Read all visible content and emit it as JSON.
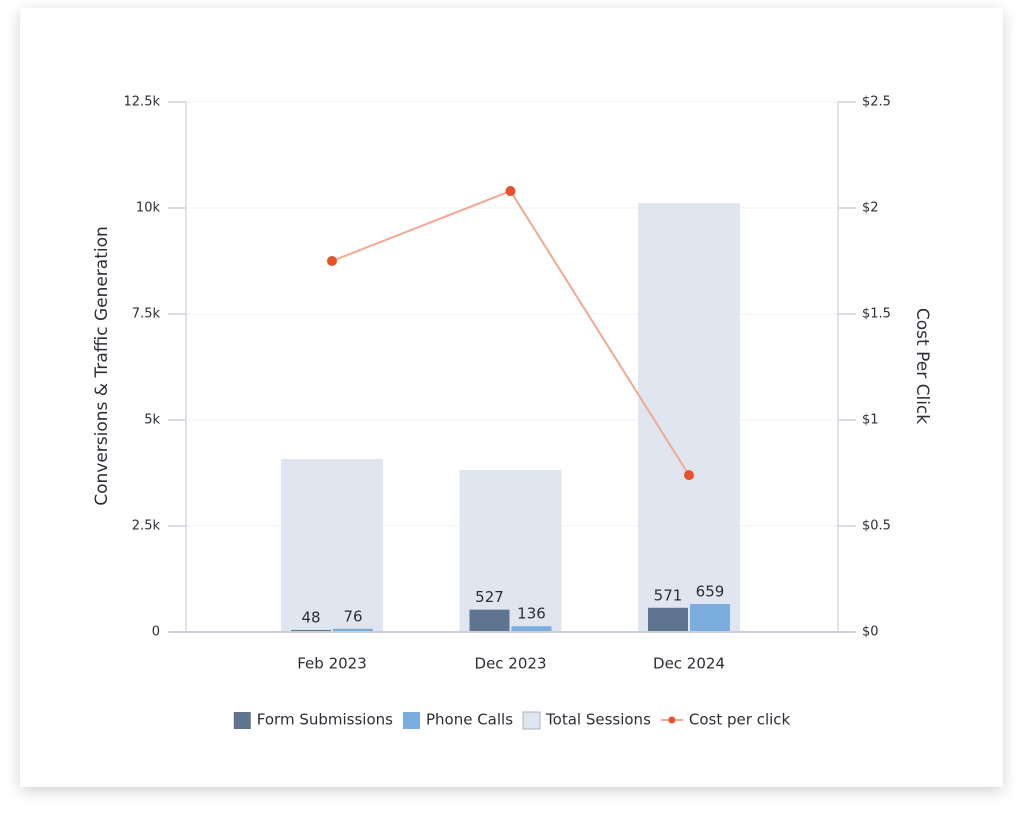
{
  "chart_data": {
    "type": "bar",
    "categories": [
      "Feb 2023",
      "Dec 2023",
      "Dec 2024"
    ],
    "y_label": "Conversions & Traffic Generation",
    "y2_label": "Cost Per Click",
    "ylim": [
      0,
      12500
    ],
    "yticks": [
      0,
      {
        "value": 2500,
        "label": "2.5k"
      },
      {
        "value": 5000,
        "label": "5k"
      },
      {
        "value": 7500,
        "label": "7.5k"
      },
      {
        "value": 10000,
        "label": "10k"
      },
      {
        "value": 12500,
        "label": "12.5k"
      }
    ],
    "y2lim": [
      0,
      2.5
    ],
    "y2ticks": [
      {
        "value": 0,
        "label": "$0"
      },
      {
        "value": 0.5,
        "label": "$0.5"
      },
      {
        "value": 1,
        "label": "$1"
      },
      {
        "value": 1.5,
        "label": "$1.5"
      },
      {
        "value": 2,
        "label": "$2"
      },
      {
        "value": 2.5,
        "label": "$2.5"
      }
    ],
    "grid": true,
    "legend": "bottom",
    "series": [
      {
        "name": "Form Submissions",
        "type": "bar",
        "color": "#5f7490",
        "values": [
          48,
          527,
          571
        ]
      },
      {
        "name": "Phone Calls",
        "type": "bar",
        "color": "#7badde",
        "values": [
          76,
          136,
          659
        ]
      },
      {
        "name": "Total Sessions",
        "type": "background-bar",
        "color": "#dfe6ef",
        "values": [
          4080,
          3820,
          10120
        ]
      },
      {
        "name": "Cost per click",
        "type": "line",
        "axis": "y2",
        "color": "#f4a792",
        "marker_color": "#e8512a",
        "values": [
          1.75,
          2.08,
          0.74
        ]
      }
    ]
  }
}
